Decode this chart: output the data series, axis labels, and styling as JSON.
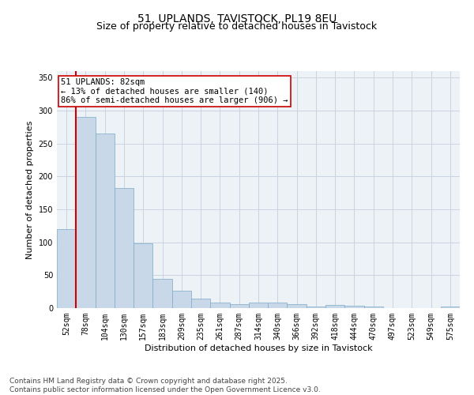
{
  "title_line1": "51, UPLANDS, TAVISTOCK, PL19 8EU",
  "title_line2": "Size of property relative to detached houses in Tavistock",
  "xlabel": "Distribution of detached houses by size in Tavistock",
  "ylabel": "Number of detached properties",
  "categories": [
    "52sqm",
    "78sqm",
    "104sqm",
    "130sqm",
    "157sqm",
    "183sqm",
    "209sqm",
    "235sqm",
    "261sqm",
    "287sqm",
    "314sqm",
    "340sqm",
    "366sqm",
    "392sqm",
    "418sqm",
    "444sqm",
    "470sqm",
    "497sqm",
    "523sqm",
    "549sqm",
    "575sqm"
  ],
  "values": [
    120,
    290,
    265,
    183,
    99,
    44,
    27,
    15,
    8,
    6,
    9,
    8,
    6,
    2,
    5,
    4,
    3,
    0,
    0,
    0,
    2
  ],
  "bar_color": "#c8d8e8",
  "bar_edge_color": "#7aaac8",
  "vline_color": "#cc0000",
  "vline_index": 1,
  "annotation_text": "51 UPLANDS: 82sqm\n← 13% of detached houses are smaller (140)\n86% of semi-detached houses are larger (906) →",
  "annotation_box_facecolor": "#ffffff",
  "annotation_box_edgecolor": "#cc0000",
  "ylim": [
    0,
    360
  ],
  "yticks": [
    0,
    50,
    100,
    150,
    200,
    250,
    300,
    350
  ],
  "grid_color": "#c8d4e0",
  "background_color": "#edf2f7",
  "footer_text": "Contains HM Land Registry data © Crown copyright and database right 2025.\nContains public sector information licensed under the Open Government Licence v3.0.",
  "title_fontsize": 10,
  "subtitle_fontsize": 9,
  "tick_fontsize": 7,
  "label_fontsize": 8,
  "footer_fontsize": 6.5,
  "annotation_fontsize": 7.5
}
